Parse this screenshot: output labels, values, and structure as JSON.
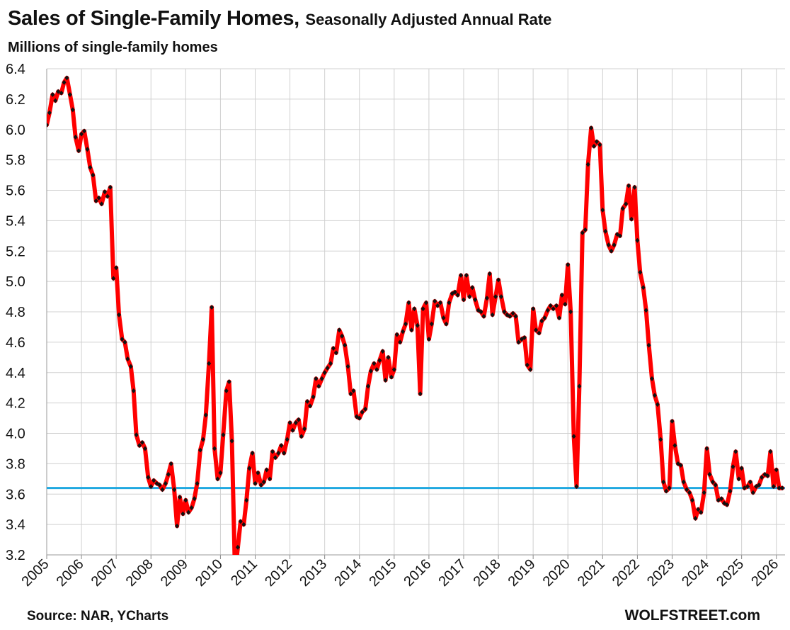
{
  "header": {
    "title": "Sales of Single-Family Homes,",
    "subtitle": "Seasonally Adjusted Annual Rate",
    "unit_label": "Millions of single-family homes"
  },
  "footer": {
    "source": "Source: NAR, YCharts",
    "brand": "WOLFSTREET.com"
  },
  "chart_data": {
    "type": "line",
    "ylim": [
      3.2,
      6.4
    ],
    "xlim": [
      2005.0,
      2026.25
    ],
    "y_ticks": [
      "3.2",
      "3.4",
      "3.6",
      "3.8",
      "4.0",
      "4.2",
      "4.4",
      "4.6",
      "4.8",
      "5.0",
      "5.2",
      "5.4",
      "5.6",
      "5.8",
      "6.0",
      "6.2",
      "6.4"
    ],
    "x_ticks": [
      "2005",
      "2006",
      "2007",
      "2008",
      "2009",
      "2010",
      "2011",
      "2012",
      "2013",
      "2014",
      "2015",
      "2016",
      "2017",
      "2018",
      "2019",
      "2020",
      "2021",
      "2022",
      "2023",
      "2024",
      "2025",
      "2026"
    ],
    "grid": true,
    "line_color": "#ff0000",
    "marker_color": "#111111",
    "reference_line": {
      "value": 3.64,
      "color": "#1fa8e0"
    },
    "series": [
      {
        "x": [
          2005.0,
          2005.08,
          2005.17,
          2005.25,
          2005.33,
          2005.42,
          2005.5,
          2005.58,
          2005.67,
          2005.75,
          2005.83,
          2005.92,
          2006.0,
          2006.08,
          2006.17,
          2006.25,
          2006.33,
          2006.42,
          2006.5,
          2006.58,
          2006.67,
          2006.75,
          2006.83,
          2006.92,
          2007.0,
          2007.08,
          2007.17,
          2007.25,
          2007.33,
          2007.42,
          2007.5,
          2007.58,
          2007.67,
          2007.75,
          2007.83,
          2007.92,
          2008.0,
          2008.08,
          2008.17,
          2008.25,
          2008.33,
          2008.42,
          2008.5,
          2008.58,
          2008.67,
          2008.75,
          2008.83,
          2008.92,
          2009.0,
          2009.08,
          2009.17,
          2009.25,
          2009.33,
          2009.42,
          2009.5,
          2009.58,
          2009.67,
          2009.75,
          2009.83,
          2009.92,
          2010.0,
          2010.08,
          2010.17,
          2010.25,
          2010.33,
          2010.42,
          2010.5,
          2010.58,
          2010.67,
          2010.75,
          2010.83,
          2010.92,
          2011.0,
          2011.08,
          2011.17,
          2011.25,
          2011.33,
          2011.42,
          2011.5,
          2011.58,
          2011.67,
          2011.75,
          2011.83,
          2011.92,
          2012.0,
          2012.08,
          2012.17,
          2012.25,
          2012.33,
          2012.42,
          2012.5,
          2012.58,
          2012.67,
          2012.75,
          2012.83,
          2012.92,
          2013.0,
          2013.08,
          2013.17,
          2013.25,
          2013.33,
          2013.42,
          2013.5,
          2013.58,
          2013.67,
          2013.75,
          2013.83,
          2013.92,
          2014.0,
          2014.08,
          2014.17,
          2014.25,
          2014.33,
          2014.42,
          2014.5,
          2014.58,
          2014.67,
          2014.75,
          2014.83,
          2014.92,
          2015.0,
          2015.08,
          2015.17,
          2015.25,
          2015.33,
          2015.42,
          2015.5,
          2015.58,
          2015.67,
          2015.75,
          2015.83,
          2015.92,
          2016.0,
          2016.08,
          2016.17,
          2016.25,
          2016.33,
          2016.42,
          2016.5,
          2016.58,
          2016.67,
          2016.75,
          2016.83,
          2016.92,
          2017.0,
          2017.08,
          2017.17,
          2017.25,
          2017.33,
          2017.42,
          2017.5,
          2017.58,
          2017.67,
          2017.75,
          2017.83,
          2017.92,
          2018.0,
          2018.08,
          2018.17,
          2018.25,
          2018.33,
          2018.42,
          2018.5,
          2018.58,
          2018.67,
          2018.75,
          2018.83,
          2018.92,
          2019.0,
          2019.08,
          2019.17,
          2019.25,
          2019.33,
          2019.42,
          2019.5,
          2019.58,
          2019.67,
          2019.75,
          2019.83,
          2019.92,
          2020.0,
          2020.08,
          2020.17,
          2020.25,
          2020.33,
          2020.42,
          2020.5,
          2020.58,
          2020.67,
          2020.75,
          2020.83,
          2020.92,
          2021.0,
          2021.08,
          2021.17,
          2021.25,
          2021.33,
          2021.42,
          2021.5,
          2021.58,
          2021.67,
          2021.75,
          2021.83,
          2021.92,
          2022.0,
          2022.08,
          2022.17,
          2022.25,
          2022.33,
          2022.42,
          2022.5,
          2022.58,
          2022.67,
          2022.75,
          2022.83,
          2022.92,
          2023.0,
          2023.08,
          2023.17,
          2023.25,
          2023.33,
          2023.42,
          2023.5,
          2023.58,
          2023.67,
          2023.75,
          2023.83,
          2023.92,
          2024.0,
          2024.08,
          2024.17,
          2024.25,
          2024.33,
          2024.42,
          2024.5,
          2024.58,
          2024.67,
          2024.75,
          2024.83,
          2024.92,
          2025.0,
          2025.08,
          2025.17,
          2025.25,
          2025.33,
          2025.42,
          2025.5,
          2025.58,
          2025.67,
          2025.75,
          2025.83,
          2025.92,
          2026.0,
          2026.08,
          2026.17
        ],
        "y": [
          6.03,
          6.11,
          6.23,
          6.19,
          6.25,
          6.24,
          6.31,
          6.34,
          6.23,
          6.13,
          5.95,
          5.86,
          5.97,
          5.99,
          5.87,
          5.75,
          5.7,
          5.53,
          5.55,
          5.51,
          5.59,
          5.56,
          5.62,
          5.02,
          5.09,
          4.78,
          4.62,
          4.6,
          4.49,
          4.44,
          4.28,
          3.99,
          3.92,
          3.94,
          3.9,
          3.71,
          3.65,
          3.69,
          3.67,
          3.66,
          3.63,
          3.67,
          3.73,
          3.8,
          3.63,
          3.39,
          3.58,
          3.47,
          3.56,
          3.48,
          3.51,
          3.57,
          3.67,
          3.89,
          3.96,
          4.12,
          4.46,
          4.83,
          3.9,
          3.7,
          3.74,
          3.99,
          4.28,
          4.34,
          3.95,
          3.08,
          3.25,
          3.42,
          3.4,
          3.56,
          3.77,
          3.87,
          3.67,
          3.74,
          3.66,
          3.68,
          3.76,
          3.7,
          3.88,
          3.84,
          3.87,
          3.92,
          3.87,
          3.96,
          4.07,
          4.02,
          4.07,
          4.09,
          3.98,
          4.03,
          4.21,
          4.18,
          4.24,
          4.36,
          4.31,
          4.36,
          4.4,
          4.43,
          4.46,
          4.56,
          4.53,
          4.68,
          4.64,
          4.58,
          4.44,
          4.26,
          4.28,
          4.11,
          4.1,
          4.14,
          4.16,
          4.31,
          4.41,
          4.46,
          4.42,
          4.48,
          4.54,
          4.35,
          4.5,
          4.37,
          4.42,
          4.65,
          4.6,
          4.67,
          4.72,
          4.86,
          4.68,
          4.82,
          4.71,
          4.26,
          4.82,
          4.86,
          4.62,
          4.72,
          4.87,
          4.84,
          4.86,
          4.76,
          4.72,
          4.86,
          4.92,
          4.93,
          4.91,
          5.04,
          4.88,
          5.04,
          4.9,
          4.96,
          4.88,
          4.81,
          4.8,
          4.77,
          4.89,
          5.05,
          4.78,
          4.9,
          5.01,
          4.9,
          4.8,
          4.78,
          4.77,
          4.79,
          4.77,
          4.6,
          4.62,
          4.63,
          4.45,
          4.42,
          4.82,
          4.68,
          4.66,
          4.74,
          4.76,
          4.81,
          4.84,
          4.82,
          4.84,
          4.76,
          4.91,
          4.85,
          5.11,
          4.8,
          3.98,
          3.65,
          4.31,
          5.32,
          5.34,
          5.77,
          6.01,
          5.89,
          5.92,
          5.9,
          5.47,
          5.33,
          5.24,
          5.2,
          5.24,
          5.31,
          5.3,
          5.48,
          5.51,
          5.63,
          5.41,
          5.62,
          5.27,
          5.06,
          4.96,
          4.81,
          4.58,
          4.36,
          4.25,
          4.19,
          3.96,
          3.68,
          3.62,
          3.64,
          4.08,
          3.92,
          3.8,
          3.79,
          3.68,
          3.63,
          3.61,
          3.56,
          3.44,
          3.5,
          3.48,
          3.61,
          3.9,
          3.73,
          3.68,
          3.66,
          3.56,
          3.57,
          3.54,
          3.53,
          3.62,
          3.78,
          3.88,
          3.7,
          3.77,
          3.64,
          3.65,
          3.68,
          3.61,
          3.65,
          3.66,
          3.71,
          3.73,
          3.72,
          3.88,
          3.65,
          3.76,
          3.64,
          3.64
        ]
      }
    ]
  }
}
